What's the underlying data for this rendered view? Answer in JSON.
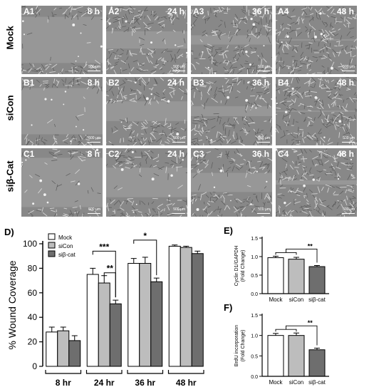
{
  "micrographs": {
    "rows": [
      {
        "label": "Mock",
        "panels": [
          {
            "id": "A1",
            "time": "8 h",
            "scale": "500 µm",
            "confluence": 0.25
          },
          {
            "id": "A2",
            "time": "24 h",
            "scale": "500 µm",
            "confluence": 0.72
          },
          {
            "id": "A3",
            "time": "36 h",
            "scale": "500 µm",
            "confluence": 0.85
          },
          {
            "id": "A4",
            "time": "48 h",
            "scale": "500 µm",
            "confluence": 0.98
          }
        ]
      },
      {
        "label": "siCon",
        "panels": [
          {
            "id": "B1",
            "time": "8 h",
            "scale": "500 µm",
            "confluence": 0.25
          },
          {
            "id": "B2",
            "time": "24 h",
            "scale": "500 µm",
            "confluence": 0.68
          },
          {
            "id": "B3",
            "time": "36 h",
            "scale": "500 µm",
            "confluence": 0.84
          },
          {
            "id": "B4",
            "time": "48 h",
            "scale": "500 µm",
            "confluence": 0.98
          }
        ]
      },
      {
        "label": "siβ-Cat",
        "panels": [
          {
            "id": "C1",
            "time": "8 h",
            "scale": "500 µm",
            "confluence": 0.2
          },
          {
            "id": "C2",
            "time": "24 h",
            "scale": "500 µm",
            "confluence": 0.52
          },
          {
            "id": "C3",
            "time": "36 h",
            "scale": "500 µm",
            "confluence": 0.69
          },
          {
            "id": "C4",
            "time": "48 h",
            "scale": "500 µm",
            "confluence": 0.93
          }
        ]
      }
    ]
  },
  "chart_data": [
    {
      "panel_label": "D)",
      "type": "bar",
      "ylabel": "% Wound Coverage",
      "ylim": [
        0,
        100
      ],
      "yticks": [
        0,
        20,
        40,
        60,
        80,
        100
      ],
      "categories": [
        "8 hr",
        "24 hr",
        "36 hr",
        "48 hr"
      ],
      "legend_position": "top-left",
      "series": [
        {
          "name": "Mock",
          "color": "#ffffff",
          "values": [
            28,
            75,
            84,
            98
          ],
          "errors": [
            4,
            5,
            4,
            1
          ]
        },
        {
          "name": "siCon",
          "color": "#bdbdbd",
          "values": [
            29,
            68,
            84,
            97
          ],
          "errors": [
            3,
            6,
            5,
            1
          ]
        },
        {
          "name": "siβ-cat",
          "color": "#6e6e6e",
          "values": [
            21,
            51,
            69,
            92
          ],
          "errors": [
            4,
            3,
            3,
            2
          ]
        }
      ],
      "annotations": [
        {
          "text": "***",
          "category": 1,
          "from_series": 0,
          "to_series": 2
        },
        {
          "text": "**",
          "category": 1,
          "from_series": 1,
          "to_series": 2
        },
        {
          "text": "*",
          "category": 2,
          "from_series": 0,
          "to_series": 2
        }
      ]
    },
    {
      "panel_label": "E)",
      "type": "bar",
      "ylabel": "Cyclin D1/GAPDH",
      "ylabel2": "(Fold Change)",
      "ylim": [
        0,
        1.5
      ],
      "yticks": [
        0.0,
        0.5,
        1.0,
        1.5
      ],
      "categories": [
        "Mock",
        "siCon",
        "siβ-cat"
      ],
      "colors": [
        "#ffffff",
        "#bdbdbd",
        "#6e6e6e"
      ],
      "values": [
        0.97,
        0.93,
        0.73
      ],
      "errors": [
        0.04,
        0.05,
        0.03
      ],
      "annotations": [
        {
          "text": "**",
          "from": [
            0,
            1
          ],
          "to": 2
        }
      ]
    },
    {
      "panel_label": "F)",
      "type": "bar",
      "ylabel": "BrdU incorporation",
      "ylabel2": "(Fold Change)",
      "ylim": [
        0,
        1.5
      ],
      "yticks": [
        0.0,
        0.5,
        1.0,
        1.5
      ],
      "categories": [
        "Mock",
        "siCon",
        "siβ-cat"
      ],
      "colors": [
        "#ffffff",
        "#bdbdbd",
        "#6e6e6e"
      ],
      "values": [
        1.0,
        1.0,
        0.65
      ],
      "errors": [
        0.05,
        0.06,
        0.04
      ],
      "annotations": [
        {
          "text": "**",
          "from": [
            0,
            1
          ],
          "to": 2
        }
      ]
    }
  ]
}
